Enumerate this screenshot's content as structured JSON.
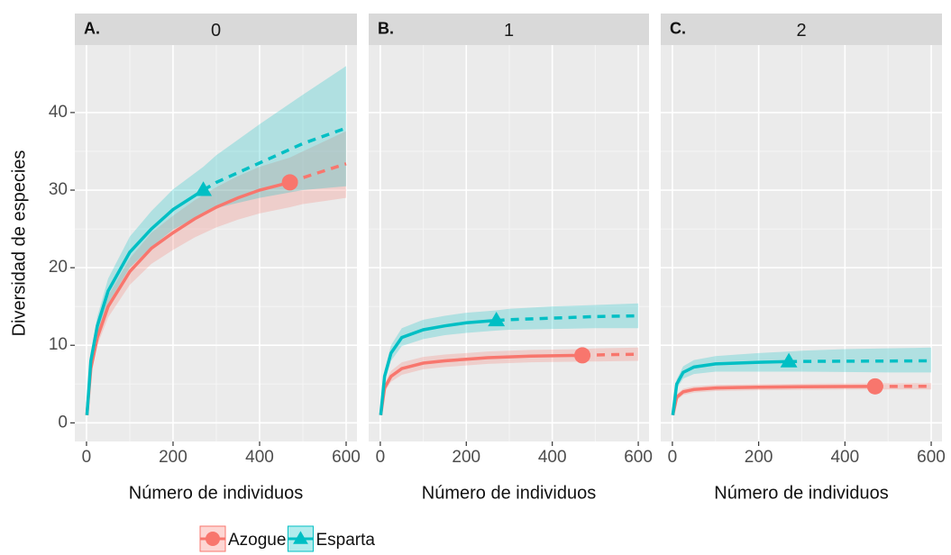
{
  "legend": [
    {
      "name": "Azogue",
      "color": "#F8766D",
      "marker": "circle"
    },
    {
      "name": "Esparta",
      "color": "#00BFC4",
      "marker": "triangle"
    }
  ],
  "chart_data": [
    {
      "type": "line",
      "panel": "A.",
      "title": "0",
      "xlabel": "Número de individuos",
      "ylabel": "Diversidad de especies",
      "xlim": [
        -27,
        625
      ],
      "xticks": [
        0,
        200,
        400,
        600
      ],
      "ylim": [
        -2.4,
        48.7
      ],
      "yticks": [
        0,
        10,
        20,
        30,
        40
      ],
      "grid": true,
      "series": [
        {
          "x": [
            1,
            10,
            25,
            50,
            100,
            150,
            200,
            250,
            300,
            350,
            400,
            470,
            500,
            550,
            600
          ],
          "values": [
            1,
            7,
            11,
            15,
            19.5,
            22.5,
            24.5,
            26.3,
            27.8,
            29,
            30,
            31,
            null,
            null,
            null
          ],
          "extrapolated": [
            null,
            null,
            null,
            null,
            null,
            null,
            null,
            null,
            null,
            null,
            null,
            31,
            31.6,
            32.5,
            33.4
          ],
          "lower": [
            1,
            6.3,
            10,
            13.6,
            17.8,
            20.5,
            22.3,
            23.9,
            25.2,
            26.2,
            27,
            27.8,
            28.2,
            28.6,
            29
          ],
          "upper": [
            1,
            7.7,
            12,
            16.4,
            21.2,
            24.5,
            26.7,
            28.7,
            30.4,
            31.8,
            33,
            34.2,
            35,
            36.3,
            37.6
          ]
        },
        {
          "x": [
            1,
            10,
            25,
            50,
            100,
            150,
            200,
            270,
            300,
            400,
            500,
            600
          ],
          "values": [
            1,
            8,
            12.5,
            17,
            22,
            25,
            27.5,
            30,
            null,
            null,
            null,
            null
          ],
          "extrapolated": [
            null,
            null,
            null,
            null,
            null,
            null,
            null,
            30,
            31,
            33.5,
            36,
            38
          ],
          "lower": [
            1,
            7,
            11.3,
            15.4,
            20,
            22.7,
            24.9,
            27,
            27.7,
            29,
            30,
            30.5
          ],
          "upper": [
            1,
            9,
            13.7,
            18.6,
            24,
            27.3,
            30.1,
            33,
            34.5,
            38.5,
            42.3,
            46
          ]
        }
      ]
    },
    {
      "type": "line",
      "panel": "B.",
      "title": "1",
      "xlabel": "Número de individuos",
      "xlim": [
        -27,
        625
      ],
      "xticks": [
        0,
        200,
        400,
        600
      ],
      "ylim": [
        -2.4,
        48.7
      ],
      "yticks": [
        0,
        10,
        20,
        30,
        40
      ],
      "grid": true,
      "series": [
        {
          "x": [
            1,
            10,
            25,
            50,
            100,
            150,
            200,
            250,
            300,
            350,
            400,
            470,
            500,
            550,
            600
          ],
          "values": [
            1,
            4.5,
            6,
            7,
            7.7,
            8,
            8.2,
            8.4,
            8.5,
            8.6,
            8.65,
            8.7,
            null,
            null,
            null
          ],
          "extrapolated": [
            null,
            null,
            null,
            null,
            null,
            null,
            null,
            null,
            null,
            null,
            null,
            8.7,
            8.75,
            8.8,
            8.85
          ],
          "lower": [
            1,
            4,
            5.3,
            6.2,
            6.9,
            7.2,
            7.4,
            7.6,
            7.7,
            7.8,
            7.85,
            7.9,
            7.9,
            7.95,
            8
          ],
          "upper": [
            1,
            5,
            6.7,
            7.8,
            8.5,
            8.8,
            9,
            9.2,
            9.3,
            9.4,
            9.45,
            9.5,
            9.6,
            9.65,
            9.7
          ]
        },
        {
          "x": [
            1,
            10,
            25,
            50,
            100,
            150,
            200,
            270,
            300,
            400,
            500,
            600
          ],
          "values": [
            1,
            6,
            9,
            11,
            12,
            12.5,
            12.9,
            13.2,
            null,
            null,
            null,
            null
          ],
          "extrapolated": [
            null,
            null,
            null,
            null,
            null,
            null,
            null,
            13.2,
            13.3,
            13.5,
            13.7,
            13.8
          ],
          "lower": [
            1,
            5.3,
            8,
            9.9,
            10.8,
            11.3,
            11.6,
            11.9,
            12,
            12.1,
            12.2,
            12.2
          ],
          "upper": [
            1,
            6.8,
            10,
            12.2,
            13.3,
            13.8,
            14.2,
            14.5,
            14.7,
            15,
            15.2,
            15.4
          ]
        }
      ]
    },
    {
      "type": "line",
      "panel": "C.",
      "title": "2",
      "xlabel": "Número de individuos",
      "xlim": [
        -27,
        625
      ],
      "xticks": [
        0,
        200,
        400,
        600
      ],
      "ylim": [
        -2.4,
        48.7
      ],
      "yticks": [
        0,
        10,
        20,
        30,
        40
      ],
      "grid": true,
      "series": [
        {
          "x": [
            1,
            10,
            25,
            50,
            100,
            150,
            200,
            250,
            300,
            350,
            400,
            470,
            500,
            550,
            600
          ],
          "values": [
            1,
            3.3,
            4,
            4.3,
            4.5,
            4.55,
            4.6,
            4.62,
            4.65,
            4.67,
            4.69,
            4.7,
            null,
            null,
            null
          ],
          "extrapolated": [
            null,
            null,
            null,
            null,
            null,
            null,
            null,
            null,
            null,
            null,
            null,
            4.7,
            4.7,
            4.71,
            4.71
          ],
          "lower": [
            1,
            2.9,
            3.6,
            3.9,
            4.1,
            4.15,
            4.2,
            4.22,
            4.25,
            4.27,
            4.29,
            4.3,
            4.3,
            4.3,
            4.3
          ],
          "upper": [
            1,
            3.7,
            4.4,
            4.7,
            4.9,
            4.95,
            5,
            5.02,
            5.05,
            5.07,
            5.09,
            5.1,
            5.1,
            5.12,
            5.12
          ]
        },
        {
          "x": [
            1,
            10,
            25,
            50,
            100,
            150,
            200,
            270,
            300,
            400,
            500,
            600
          ],
          "values": [
            1,
            5,
            6.5,
            7.2,
            7.6,
            7.7,
            7.8,
            7.9,
            null,
            null,
            null,
            null
          ],
          "extrapolated": [
            null,
            null,
            null,
            null,
            null,
            null,
            null,
            7.9,
            7.92,
            7.95,
            7.97,
            8
          ],
          "lower": [
            1,
            4.4,
            5.7,
            6.3,
            6.6,
            6.6,
            6.6,
            6.6,
            6.6,
            6.55,
            6.5,
            6.5
          ],
          "upper": [
            1,
            5.6,
            7.3,
            8.1,
            8.6,
            8.8,
            9,
            9.2,
            9.3,
            9.5,
            9.6,
            9.7
          ]
        }
      ]
    }
  ]
}
